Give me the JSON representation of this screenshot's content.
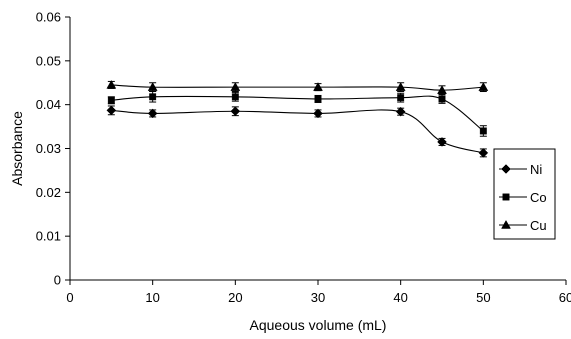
{
  "chart_data": {
    "type": "line",
    "title": "",
    "xlabel": "Aqueous volume (mL)",
    "ylabel": "Absorbance",
    "xlim": [
      0,
      60
    ],
    "ylim": [
      0,
      0.06
    ],
    "x_ticks": [
      0,
      10,
      20,
      30,
      40,
      50,
      60
    ],
    "y_ticks": [
      0,
      0.01,
      0.02,
      0.03,
      0.04,
      0.05,
      0.06
    ],
    "x_tick_labels": [
      "0",
      "10",
      "20",
      "30",
      "40",
      "50",
      "60"
    ],
    "y_tick_labels": [
      "0",
      "0.01",
      "0.02",
      "0.03",
      "0.04",
      "0.05",
      "0.06"
    ],
    "grid": false,
    "legend_position": "right",
    "x": [
      5,
      10,
      20,
      30,
      40,
      45,
      50
    ],
    "series": [
      {
        "name": "Ni",
        "marker": "diamond",
        "values": [
          0.0387,
          0.038,
          0.0385,
          0.038,
          0.0384,
          0.0315,
          0.029
        ],
        "errors": [
          0.001,
          0.0008,
          0.001,
          0.0008,
          0.0008,
          0.0008,
          0.0009
        ]
      },
      {
        "name": "Co",
        "marker": "square",
        "values": [
          0.041,
          0.0418,
          0.0418,
          0.0413,
          0.0416,
          0.0413,
          0.034
        ],
        "errors": [
          0.0008,
          0.0012,
          0.001,
          0.0008,
          0.001,
          0.001,
          0.0012
        ]
      },
      {
        "name": "Cu",
        "marker": "triangle",
        "values": [
          0.0445,
          0.044,
          0.044,
          0.044,
          0.044,
          0.0433,
          0.044
        ],
        "errors": [
          0.0008,
          0.001,
          0.001,
          0.0008,
          0.001,
          0.001,
          0.001
        ]
      }
    ],
    "colors": {
      "line": "#000000",
      "background": "#ffffff"
    }
  }
}
